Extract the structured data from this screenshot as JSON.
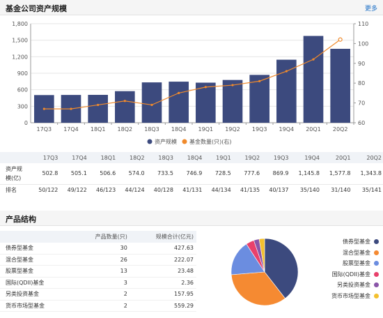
{
  "header1": {
    "title": "基金公司资产规模",
    "more": "更多"
  },
  "chart_data": {
    "type": "bar",
    "categories": [
      "17Q3",
      "17Q4",
      "18Q1",
      "18Q2",
      "18Q3",
      "18Q4",
      "19Q1",
      "19Q2",
      "19Q3",
      "19Q4",
      "20Q1",
      "20Q2"
    ],
    "series": [
      {
        "name": "资产规模",
        "type": "bar",
        "axis": "left",
        "values": [
          502.8,
          505.1,
          506.6,
          574.0,
          733.5,
          746.9,
          728.5,
          777.6,
          869.9,
          1145.8,
          1577.8,
          1343.8
        ]
      },
      {
        "name": "基金数量(只)(右)",
        "type": "line",
        "axis": "right",
        "values": [
          67,
          67,
          69,
          71,
          69,
          75,
          78,
          79,
          81,
          86,
          92,
          102
        ]
      }
    ],
    "left_axis": {
      "ylim": [
        0,
        1800
      ],
      "ticks": [
        "0",
        "300",
        "600",
        "900",
        "1,200",
        "1,500",
        "1,800"
      ]
    },
    "right_axis": {
      "ylim": [
        60,
        110
      ],
      "ticks": [
        "60",
        "70",
        "80",
        "90",
        "100",
        "110"
      ]
    },
    "colors": {
      "bar": "#3c4a7e",
      "line": "#f08a2c"
    },
    "legend_position": "bottom-center"
  },
  "stats": {
    "row_label_size_l1": "资产规",
    "row_label_size_l2": "模(亿)",
    "row_label_rank": "排名",
    "sizes": [
      "502.8",
      "505.1",
      "506.6",
      "574.0",
      "733.5",
      "746.9",
      "728.5",
      "777.6",
      "869.9",
      "1,145.8",
      "1,577.8",
      "1,343.8"
    ],
    "ranks": [
      "50/122",
      "49/122",
      "46/123",
      "44/124",
      "40/128",
      "41/131",
      "44/134",
      "41/135",
      "40/137",
      "35/140",
      "31/140",
      "35/141"
    ]
  },
  "header2": {
    "title": "产品结构"
  },
  "products": {
    "columns": [
      "",
      "产品数量(只)",
      "规模合计(亿元)"
    ],
    "rows": [
      {
        "name": "债券型基金",
        "count": "30",
        "size": "427.63"
      },
      {
        "name": "混合型基金",
        "count": "26",
        "size": "222.07"
      },
      {
        "name": "股票型基金",
        "count": "13",
        "size": "23.48"
      },
      {
        "name": "国际(QDII)基金",
        "count": "3",
        "size": "2.36"
      },
      {
        "name": "另类投资基金",
        "count": "2",
        "size": "157.95"
      },
      {
        "name": "货币市场型基金",
        "count": "2",
        "size": "559.29"
      }
    ]
  },
  "pie": {
    "slices": [
      {
        "name": "债券型基金",
        "value": 30,
        "color": "#3c4a7e"
      },
      {
        "name": "混合型基金",
        "value": 26,
        "color": "#f58a32"
      },
      {
        "name": "股票型基金",
        "value": 13,
        "color": "#6b8de0"
      },
      {
        "name": "国际(QDII)基金",
        "value": 3,
        "color": "#e8416b"
      },
      {
        "name": "另类投资基金",
        "value": 2,
        "color": "#8a55a8"
      },
      {
        "name": "货币市场型基金",
        "value": 2,
        "color": "#f3c02e"
      }
    ]
  }
}
